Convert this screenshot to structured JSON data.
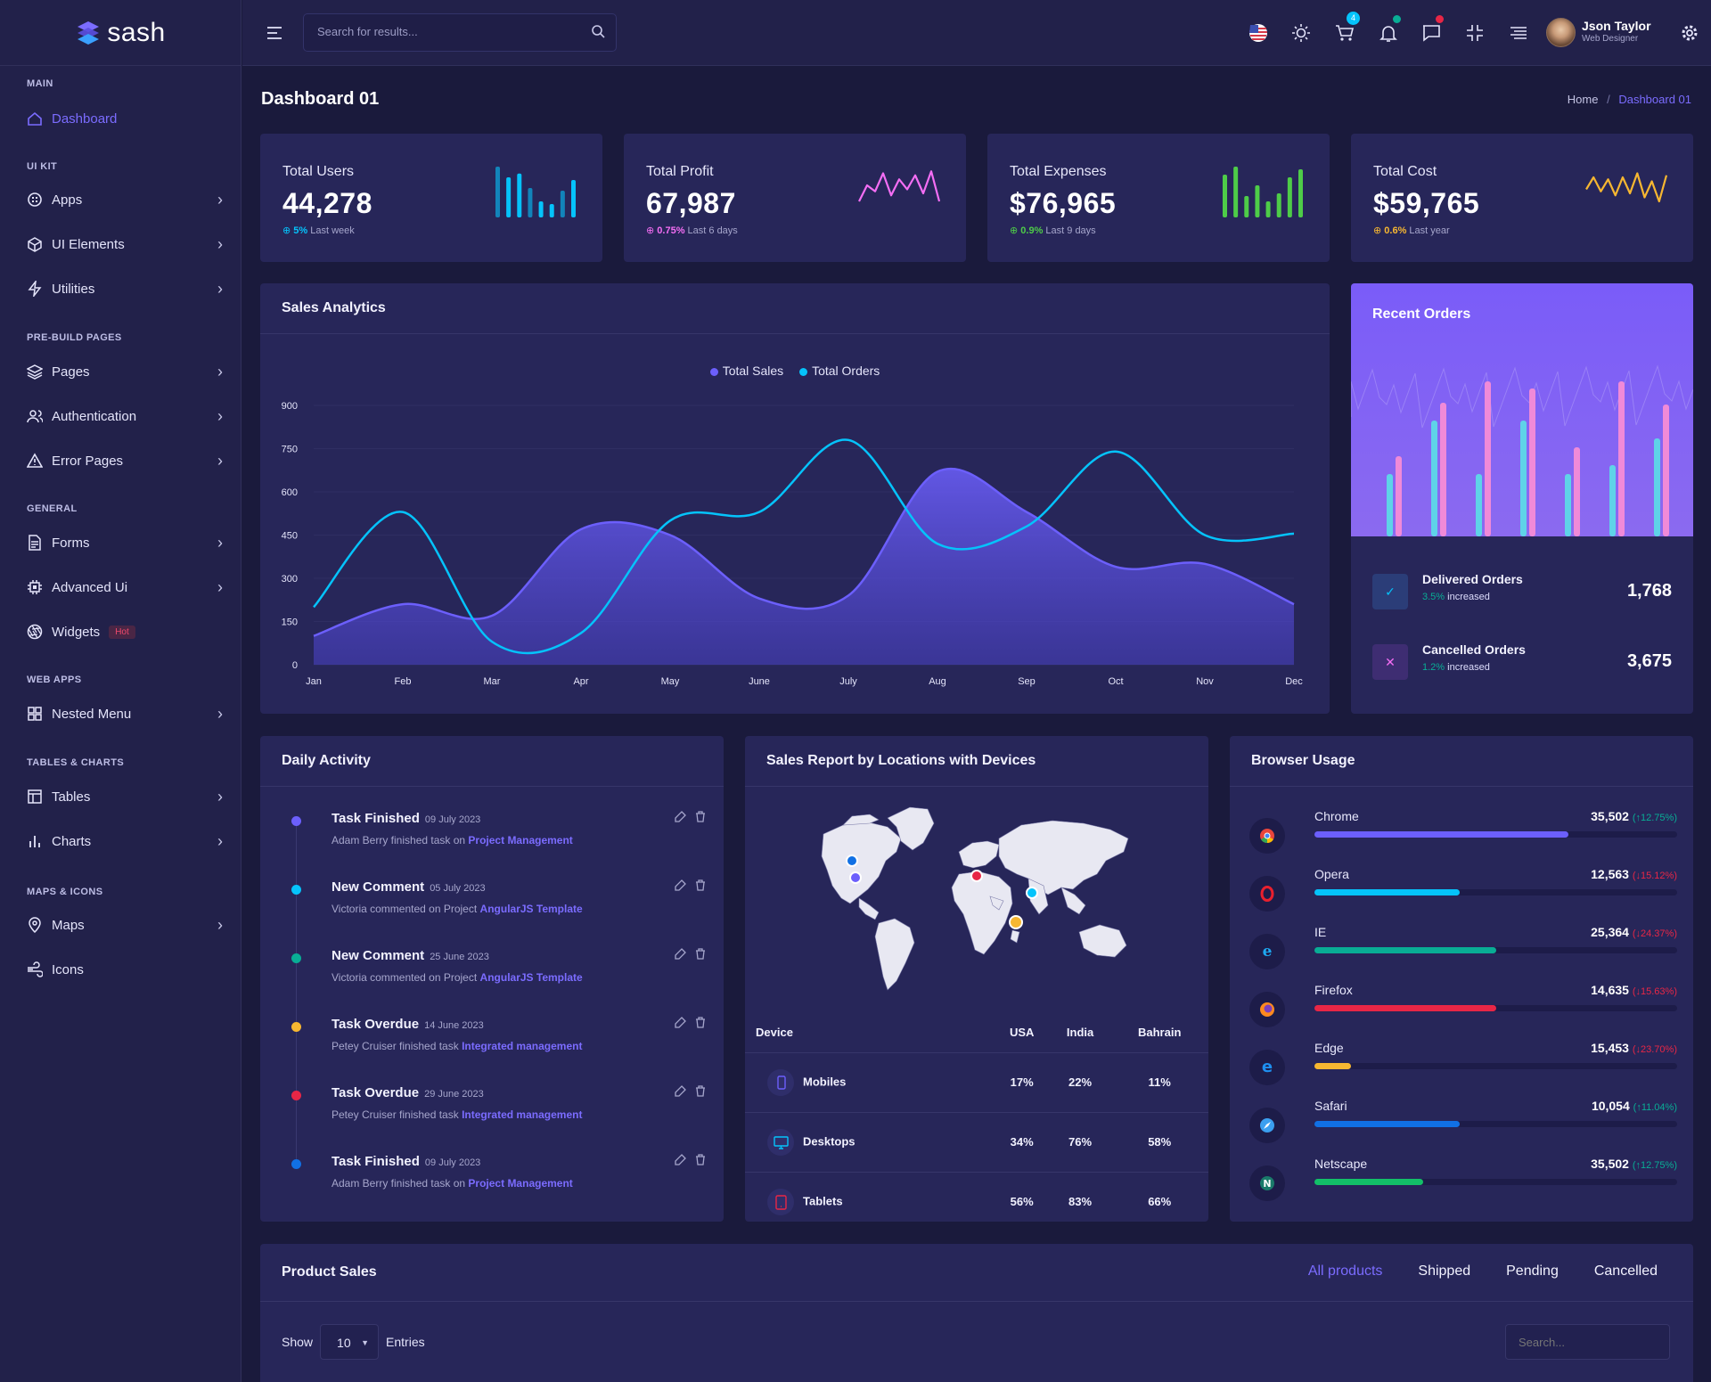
{
  "app": {
    "name": "sash"
  },
  "header": {
    "search_placeholder": "Search for results...",
    "cart_count": "4",
    "user_name": "Json Taylor",
    "user_role": "Web Designer"
  },
  "page": {
    "title": "Dashboard 01",
    "breadcrumb": [
      "Home",
      "Dashboard 01"
    ]
  },
  "sidebar": {
    "categories": [
      "MAIN",
      "UI KIT",
      "PRE-BUILD PAGES",
      "GENERAL",
      "WEB APPS",
      "TABLES & CHARTS",
      "MAPS & ICONS"
    ],
    "items": [
      {
        "label": "Dashboard",
        "icon": "home-icon"
      },
      {
        "label": "Apps",
        "icon": "apps-icon"
      },
      {
        "label": "UI Elements",
        "icon": "box-icon"
      },
      {
        "label": "Utilities",
        "icon": "bolt-icon"
      },
      {
        "label": "Pages",
        "icon": "layers-icon"
      },
      {
        "label": "Authentication",
        "icon": "users-icon"
      },
      {
        "label": "Error Pages",
        "icon": "warning-icon"
      },
      {
        "label": "Forms",
        "icon": "file-icon"
      },
      {
        "label": "Advanced Ui",
        "icon": "cpu-icon"
      },
      {
        "label": "Widgets",
        "icon": "aperture-icon"
      },
      {
        "label": "Nested Menu",
        "icon": "grid-icon"
      },
      {
        "label": "Tables",
        "icon": "table-icon"
      },
      {
        "label": "Charts",
        "icon": "chart-icon"
      },
      {
        "label": "Maps",
        "icon": "map-pin-icon"
      },
      {
        "label": "Icons",
        "icon": "wind-icon"
      }
    ],
    "hot_badge": "Hot"
  },
  "stats": [
    {
      "title": "Total Users",
      "value": "44,278",
      "change": "5%",
      "period": "Last week",
      "color": "#05c3fb"
    },
    {
      "title": "Total Profit",
      "value": "67,987",
      "change": "0.75%",
      "period": "Last 6 days",
      "color": "#f46ef4"
    },
    {
      "title": "Total Expenses",
      "value": "$76,965",
      "change": "0.9%",
      "period": "Last 9 days",
      "color": "#4ecc48"
    },
    {
      "title": "Total Cost",
      "value": "$59,765",
      "change": "0.6%",
      "period": "Last year",
      "color": "#f7b731"
    }
  ],
  "sales_analytics": {
    "title": "Sales Analytics"
  },
  "chart_data": {
    "type": "area",
    "title": "Sales Analytics",
    "categories": [
      "Jan",
      "Feb",
      "Mar",
      "Apr",
      "May",
      "June",
      "July",
      "Aug",
      "Sep",
      "Oct",
      "Nov",
      "Dec"
    ],
    "ylim": [
      0,
      900
    ],
    "yticks": [
      0,
      150,
      300,
      450,
      600,
      750,
      900
    ],
    "legend_position": "top",
    "series": [
      {
        "name": "Total Sales",
        "type": "area",
        "color": "#6c5ffc",
        "values": [
          100,
          210,
          170,
          470,
          450,
          230,
          240,
          670,
          530,
          340,
          350,
          210
        ]
      },
      {
        "name": "Total Orders",
        "type": "line",
        "color": "#05c3fb",
        "values": [
          200,
          530,
          80,
          110,
          500,
          530,
          780,
          420,
          480,
          740,
          450,
          455
        ]
      }
    ]
  },
  "recent_orders": {
    "title": "Recent Orders",
    "delivered": {
      "label": "Delivered Orders",
      "pct": "3.5%",
      "word": "increased",
      "value": "1,768"
    },
    "cancelled": {
      "label": "Cancelled Orders",
      "pct": "1.2%",
      "word": "increased",
      "value": "3,675"
    }
  },
  "daily_activity": {
    "title": "Daily Activity",
    "items": [
      {
        "title": "Task Finished",
        "date": "09 July 2023",
        "desc": "Adam Berry finished task on",
        "link": "Project Management",
        "color": "#6c5ffc"
      },
      {
        "title": "New Comment",
        "date": "05 July 2023",
        "desc": "Victoria commented on Project",
        "link": "AngularJS Template",
        "color": "#05c3fb"
      },
      {
        "title": "New Comment",
        "date": "25 June 2023",
        "desc": "Victoria commented on Project",
        "link": "AngularJS Template",
        "color": "#09ad95"
      },
      {
        "title": "Task Overdue",
        "date": "14 June 2023",
        "desc": "Petey Cruiser finished task",
        "link": "Integrated management",
        "color": "#f7b731"
      },
      {
        "title": "Task Overdue",
        "date": "29 June 2023",
        "desc": "Petey Cruiser finished task",
        "link": "Integrated management",
        "color": "#e82646"
      },
      {
        "title": "Task Finished",
        "date": "09 July 2023",
        "desc": "Adam Berry finished task on",
        "link": "Project Management",
        "color": "#1170e4"
      }
    ]
  },
  "sales_report": {
    "title": "Sales Report by Locations with Devices",
    "columns": [
      "Device",
      "USA",
      "India",
      "Bahrain"
    ],
    "rows": [
      {
        "device": "Mobiles",
        "icon": "mobile-icon",
        "usa": "17%",
        "india": "22%",
        "bahrain": "11%",
        "color": "#6c5ffc"
      },
      {
        "device": "Desktops",
        "icon": "monitor-icon",
        "usa": "34%",
        "india": "76%",
        "bahrain": "58%",
        "color": "#05c3fb"
      },
      {
        "device": "Tablets",
        "icon": "tablet-icon",
        "usa": "56%",
        "india": "83%",
        "bahrain": "66%",
        "color": "#e82646"
      }
    ]
  },
  "browser_usage": {
    "title": "Browser Usage",
    "items": [
      {
        "name": "Chrome",
        "value": "35,502",
        "change": "12.75%",
        "dir": "up",
        "fill": 0.7,
        "color": "#6c5ffc",
        "icon": "chrome-icon"
      },
      {
        "name": "Opera",
        "value": "12,563",
        "change": "15.12%",
        "dir": "down",
        "fill": 0.4,
        "color": "#05c3fb",
        "icon": "opera-icon"
      },
      {
        "name": "IE",
        "value": "25,364",
        "change": "24.37%",
        "dir": "down",
        "fill": 0.5,
        "color": "#09ad95",
        "icon": "ie-icon"
      },
      {
        "name": "Firefox",
        "value": "14,635",
        "change": "15.63%",
        "dir": "down",
        "fill": 0.5,
        "color": "#e82646",
        "icon": "firefox-icon"
      },
      {
        "name": "Edge",
        "value": "15,453",
        "change": "23.70%",
        "dir": "down",
        "fill": 0.1,
        "color": "#f7b731",
        "icon": "edge-icon"
      },
      {
        "name": "Safari",
        "value": "10,054",
        "change": "11.04%",
        "dir": "up",
        "fill": 0.4,
        "color": "#1170e4",
        "icon": "safari-icon"
      },
      {
        "name": "Netscape",
        "value": "35,502",
        "change": "12.75%",
        "dir": "up",
        "fill": 0.3,
        "color": "#13bf68",
        "icon": "netscape-icon"
      }
    ]
  },
  "product_sales": {
    "title": "Product Sales",
    "tabs": [
      "All products",
      "Shipped",
      "Pending",
      "Cancelled"
    ],
    "show": "Show",
    "entries_value": "10",
    "entries": "Entries",
    "search_placeholder": "Search..."
  }
}
